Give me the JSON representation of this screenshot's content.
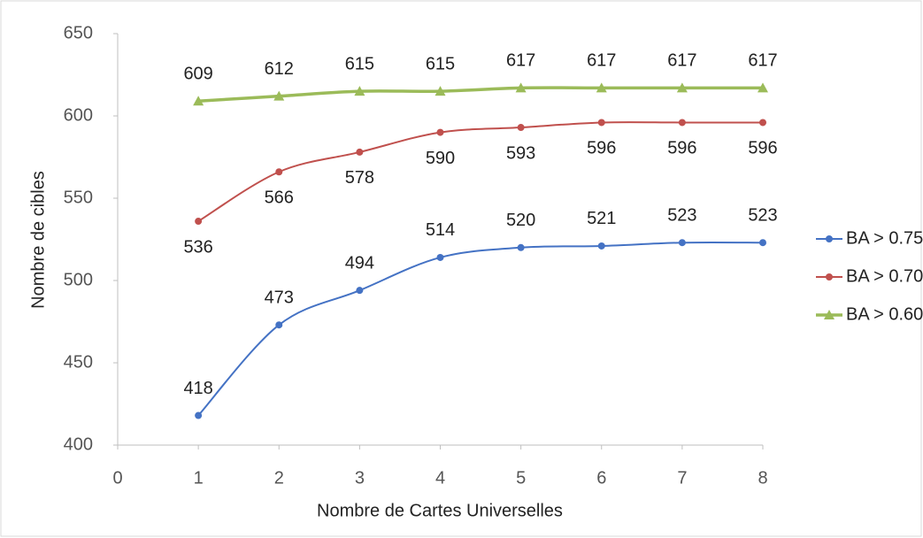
{
  "chart_data": {
    "type": "line",
    "x_label": "Nombre de Cartes Universelles",
    "y_label": "Nombre de cibles",
    "x": [
      1,
      2,
      3,
      4,
      5,
      6,
      7,
      8
    ],
    "xlim": [
      0,
      8
    ],
    "xticks": [
      0,
      1,
      2,
      3,
      4,
      5,
      6,
      7,
      8
    ],
    "ylim": [
      400,
      650
    ],
    "yticks": [
      400,
      450,
      500,
      550,
      600,
      650
    ],
    "legend": "right",
    "series": [
      {
        "name": "BA > 0.75",
        "color": "#4472c4",
        "marker": "circle",
        "label_side": "above",
        "values": [
          418,
          473,
          494,
          514,
          520,
          521,
          523,
          523
        ]
      },
      {
        "name": "BA > 0.70",
        "color": "#c0504d",
        "marker": "circle",
        "label_side": "below",
        "values": [
          536,
          566,
          578,
          590,
          593,
          596,
          596,
          596
        ]
      },
      {
        "name": "BA > 0.60",
        "color": "#9bbb59",
        "marker": "triangle",
        "label_side": "above",
        "values": [
          609,
          612,
          615,
          615,
          617,
          617,
          617,
          617
        ]
      }
    ]
  }
}
